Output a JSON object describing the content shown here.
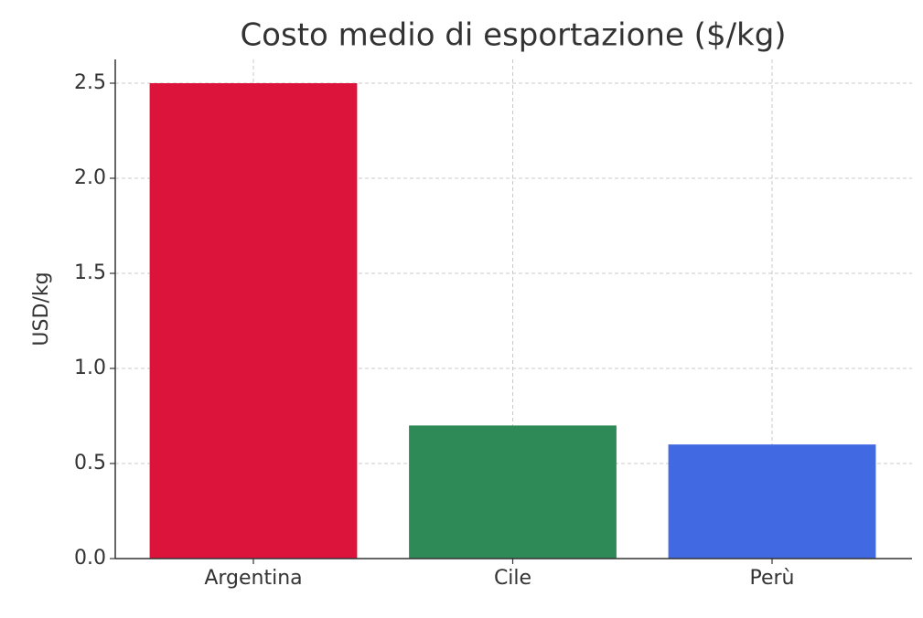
{
  "chart_data": {
    "type": "bar",
    "title": "Costo medio di esportazione ($/kg)",
    "y_label": "USD/kg",
    "categories": [
      "Argentina",
      "Cile",
      "Perù"
    ],
    "values": [
      2.5,
      0.7,
      0.6
    ],
    "colors": [
      "#dc143c",
      "#2e8b57",
      "#4169e1"
    ],
    "ylim": [
      0,
      2.625
    ],
    "yticks": [
      {
        "value": 0,
        "label": "0.0"
      },
      0.5,
      {
        "value": 1,
        "label": "1.0"
      },
      1.5,
      {
        "value": 2,
        "label": "2.0"
      },
      2.5
    ],
    "grid": true
  }
}
